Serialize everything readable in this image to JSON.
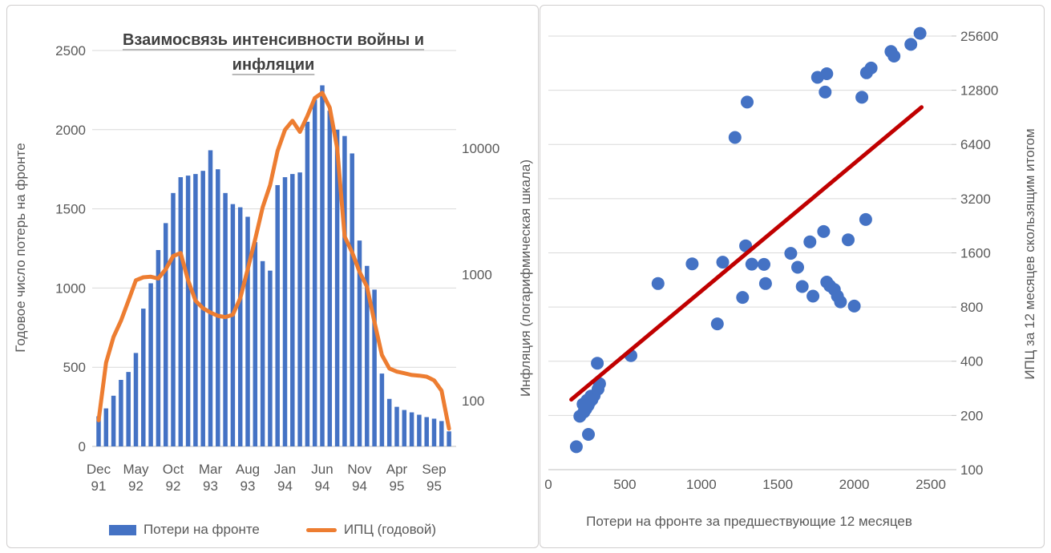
{
  "colors": {
    "bar_blue": "#4472C4",
    "line_orange": "#ED7D31",
    "trend_red": "#C00000",
    "dot_blue": "#4472C4",
    "gridline": "#D9D9D9",
    "axis_line": "#BFBFBF",
    "tick_text": "#595959",
    "title_text": "#404040"
  },
  "chart_data": [
    {
      "type": "bar",
      "subtype": "combo-bar-line",
      "title": "Взаимосвязь интенсивности войны и инфляции",
      "ylabel_left": "Годовое число потерь на фронте",
      "ylabel_right": "Инфляция (логарифмическая шкала)",
      "yticks_left": [
        0,
        500,
        1000,
        1500,
        2000,
        2500
      ],
      "ylim_left": [
        0,
        2500
      ],
      "yticks_right": [
        100,
        1000,
        10000
      ],
      "y_right_scale": "log10",
      "grid": "horizontal",
      "legend_position": "bottom",
      "xtick_every": 5,
      "xtick_labels": [
        "Dec 91",
        "May 92",
        "Oct 92",
        "Mar 93",
        "Aug 93",
        "Jan 94",
        "Jun 94",
        "Nov 94",
        "Apr 95",
        "Sep 95"
      ],
      "categories": [
        "Dec 91",
        "Jan 92",
        "Feb 92",
        "Mar 92",
        "Apr 92",
        "May 92",
        "Jun 92",
        "Jul 92",
        "Aug 92",
        "Sep 92",
        "Oct 92",
        "Nov 92",
        "Dec 92",
        "Jan 93",
        "Feb 93",
        "Mar 93",
        "Apr 93",
        "May 93",
        "Jun 93",
        "Jul 93",
        "Aug 93",
        "Sep 93",
        "Oct 93",
        "Nov 93",
        "Dec 93",
        "Jan 94",
        "Feb 94",
        "Mar 94",
        "Apr 94",
        "May 94",
        "Jun 94",
        "Jul 94",
        "Aug 94",
        "Sep 94",
        "Oct 94",
        "Nov 94",
        "Dec 94",
        "Jan 95",
        "Feb 95",
        "Mar 95",
        "Apr 95",
        "May 95",
        "Jun 95",
        "Jul 95",
        "Aug 95",
        "Sep 95",
        "Oct 95",
        "Nov 95"
      ],
      "series": [
        {
          "name": "Потери на фронте",
          "type": "bar",
          "axis": "left",
          "color": "#4472C4",
          "values": [
            190,
            240,
            320,
            420,
            470,
            590,
            870,
            1030,
            1240,
            1410,
            1600,
            1700,
            1710,
            1720,
            1740,
            1870,
            1750,
            1600,
            1530,
            1510,
            1450,
            1290,
            1170,
            1110,
            1650,
            1700,
            1720,
            1730,
            2050,
            2190,
            2280,
            2120,
            2000,
            1960,
            1850,
            1300,
            1140,
            990,
            460,
            300,
            250,
            230,
            215,
            200,
            185,
            175,
            160,
            95
          ]
        },
        {
          "name": "ИПЦ (годовой)",
          "type": "line",
          "axis": "right",
          "color": "#ED7D31",
          "values": [
            70,
            200,
            320,
            430,
            620,
            900,
            950,
            960,
            930,
            1100,
            1400,
            1480,
            900,
            620,
            540,
            500,
            470,
            460,
            480,
            650,
            1100,
            1900,
            3400,
            5100,
            9500,
            14000,
            16500,
            13500,
            18000,
            25000,
            27500,
            21000,
            10000,
            2000,
            1500,
            1050,
            800,
            420,
            230,
            180,
            170,
            165,
            160,
            158,
            155,
            145,
            120,
            60
          ]
        }
      ]
    },
    {
      "type": "scatter",
      "xlabel": "Потери на фронте за предшествующие 12 месяцев",
      "ylabel_right": "ИПЦ за 12 месяцев скользящим итогом",
      "xticks": [
        0,
        500,
        1000,
        1500,
        2000,
        2500
      ],
      "xlim": [
        0,
        2500
      ],
      "yticks": [
        100,
        200,
        400,
        800,
        1600,
        3200,
        6400,
        12800,
        25600
      ],
      "ylim": [
        100,
        25600
      ],
      "y_scale": "log2",
      "grid": "horizontal",
      "point_color": "#4472C4",
      "points": [
        [
          183,
          134
        ],
        [
          262,
          157
        ],
        [
          206,
          198
        ],
        [
          227,
          231
        ],
        [
          232,
          209
        ],
        [
          245,
          217
        ],
        [
          253,
          243
        ],
        [
          260,
          227
        ],
        [
          270,
          237
        ],
        [
          279,
          256
        ],
        [
          285,
          245
        ],
        [
          300,
          258
        ],
        [
          325,
          280
        ],
        [
          335,
          300
        ],
        [
          320,
          390
        ],
        [
          540,
          430
        ],
        [
          717,
          1080
        ],
        [
          940,
          1390
        ],
        [
          1105,
          645
        ],
        [
          1140,
          1420
        ],
        [
          1220,
          7000
        ],
        [
          1270,
          905
        ],
        [
          1290,
          1750
        ],
        [
          1300,
          11000
        ],
        [
          1330,
          1385
        ],
        [
          1410,
          1380
        ],
        [
          1420,
          1080
        ],
        [
          1585,
          1590
        ],
        [
          1630,
          1330
        ],
        [
          1660,
          1040
        ],
        [
          1710,
          1840
        ],
        [
          1730,
          920
        ],
        [
          1760,
          15100
        ],
        [
          1800,
          2100
        ],
        [
          1810,
          12500
        ],
        [
          1820,
          15800
        ],
        [
          1820,
          1100
        ],
        [
          1840,
          1050
        ],
        [
          1870,
          1000
        ],
        [
          1890,
          920
        ],
        [
          1910,
          855
        ],
        [
          1960,
          1890
        ],
        [
          2000,
          810
        ],
        [
          2050,
          11700
        ],
        [
          2075,
          2450
        ],
        [
          2080,
          16000
        ],
        [
          2110,
          17000
        ],
        [
          2240,
          21000
        ],
        [
          2260,
          19800
        ],
        [
          2370,
          23000
        ],
        [
          2430,
          26500
        ]
      ],
      "trendline": {
        "color": "#C00000",
        "from": [
          150,
          245
        ],
        "to": [
          2440,
          10300
        ]
      }
    }
  ]
}
